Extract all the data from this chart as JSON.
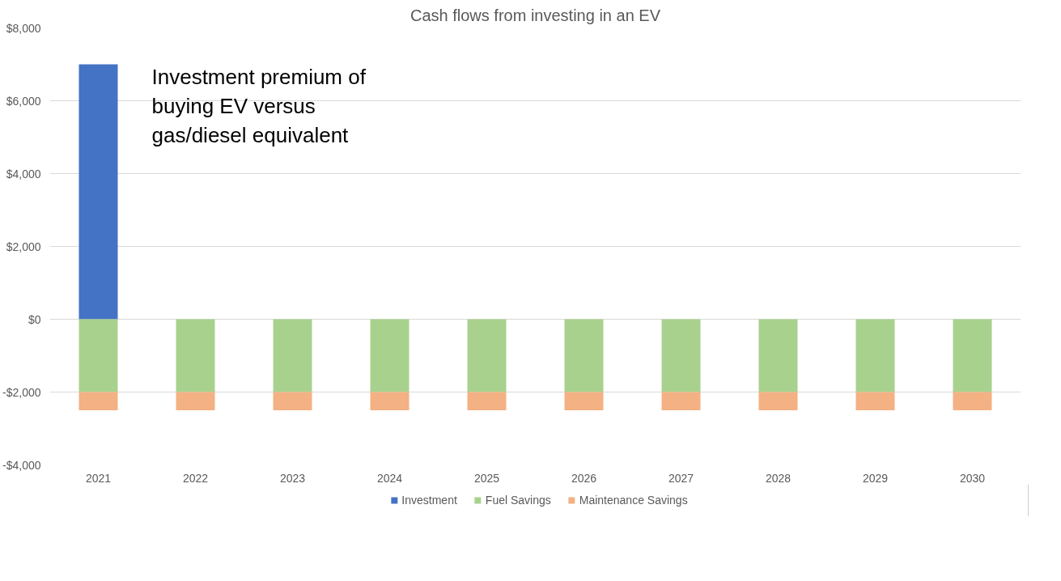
{
  "chart_data": {
    "type": "bar",
    "title": "Cash flows from investing in an EV",
    "categories": [
      "2021",
      "2022",
      "2023",
      "2024",
      "2025",
      "2026",
      "2027",
      "2028",
      "2029",
      "2030"
    ],
    "stacked": true,
    "series": [
      {
        "name": "Investment",
        "color": "#4472c4",
        "values": [
          7000,
          null,
          null,
          null,
          null,
          null,
          null,
          null,
          null,
          null
        ]
      },
      {
        "name": "Fuel Savings",
        "color": "#a9d18e",
        "values": [
          -2000,
          -2000,
          -2000,
          -2000,
          -2000,
          -2000,
          -2000,
          -2000,
          -2000,
          -2000
        ]
      },
      {
        "name": "Maintenance Savings",
        "color": "#f4b183",
        "values": [
          -500,
          -500,
          -500,
          -500,
          -500,
          -500,
          -500,
          -500,
          -500,
          -500
        ]
      }
    ],
    "ylim": [
      -4000,
      8000
    ],
    "yticks": [
      {
        "value": -4000,
        "label": "-$4,000"
      },
      {
        "value": -2000,
        "label": "-$2,000"
      },
      {
        "value": 0,
        "label": "$0"
      },
      {
        "value": 2000,
        "label": "$2,000"
      },
      {
        "value": 4000,
        "label": "$4,000"
      },
      {
        "value": 6000,
        "label": "$6,000"
      },
      {
        "value": 8000,
        "label": "$8,000"
      }
    ],
    "grid": "y",
    "legend": "bottom",
    "annotations": [
      {
        "text": "Investment premium of\nbuying EV versus\ngas/diesel equivalent",
        "x": "2021",
        "y": 7000
      }
    ]
  }
}
